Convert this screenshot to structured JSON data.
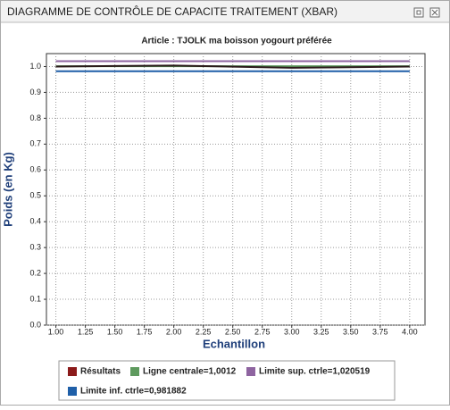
{
  "window": {
    "title": "DIAGRAMME DE CONTRÔLE DE CAPACITE TRAITEMENT (XBAR)"
  },
  "chart_data": {
    "type": "line",
    "title": "Article : TJOLK ma boisson yogourt préférée",
    "x_label": "Echantillon",
    "y_label": "Poids (en Kg)",
    "x": [
      1,
      2,
      3,
      4
    ],
    "series": [
      {
        "name": "Résultats",
        "color": "#8b1a1a",
        "values": [
          1.0,
          1.004,
          0.995,
          1.0
        ]
      },
      {
        "name": "Ligne centrale=1,0012",
        "color": "#5e9a5e",
        "values": [
          1.0012,
          1.0012,
          1.0012,
          1.0012
        ]
      },
      {
        "name": "Limite sup. ctrle=1,020519",
        "color": "#8e64a0",
        "values": [
          1.020519,
          1.020519,
          1.020519,
          1.020519
        ]
      },
      {
        "name": "Limite inf. ctrle=0,981882",
        "color": "#1f5fa8",
        "values": [
          0.981882,
          0.981882,
          0.981882,
          0.981882
        ]
      }
    ],
    "xlim": [
      0.92,
      4.13
    ],
    "ylim": [
      0,
      1.05
    ],
    "xticks": [
      {
        "value": 1,
        "label": "1.00"
      },
      1.25,
      {
        "value": 1.5,
        "label": "1.50"
      },
      1.75,
      {
        "value": 2,
        "label": "2.00"
      },
      2.25,
      {
        "value": 2.5,
        "label": "2.50"
      },
      2.75,
      {
        "value": 3,
        "label": "3.00"
      },
      3.25,
      {
        "value": 3.5,
        "label": "3.50"
      },
      3.75,
      {
        "value": 4,
        "label": "4.00"
      }
    ],
    "yticks": [
      {
        "value": 0,
        "label": "0.0"
      },
      0.1,
      0.2,
      0.3,
      0.4,
      0.5,
      0.6,
      0.7,
      0.8,
      0.9,
      {
        "value": 1,
        "label": "1.0"
      }
    ],
    "grid": true
  }
}
